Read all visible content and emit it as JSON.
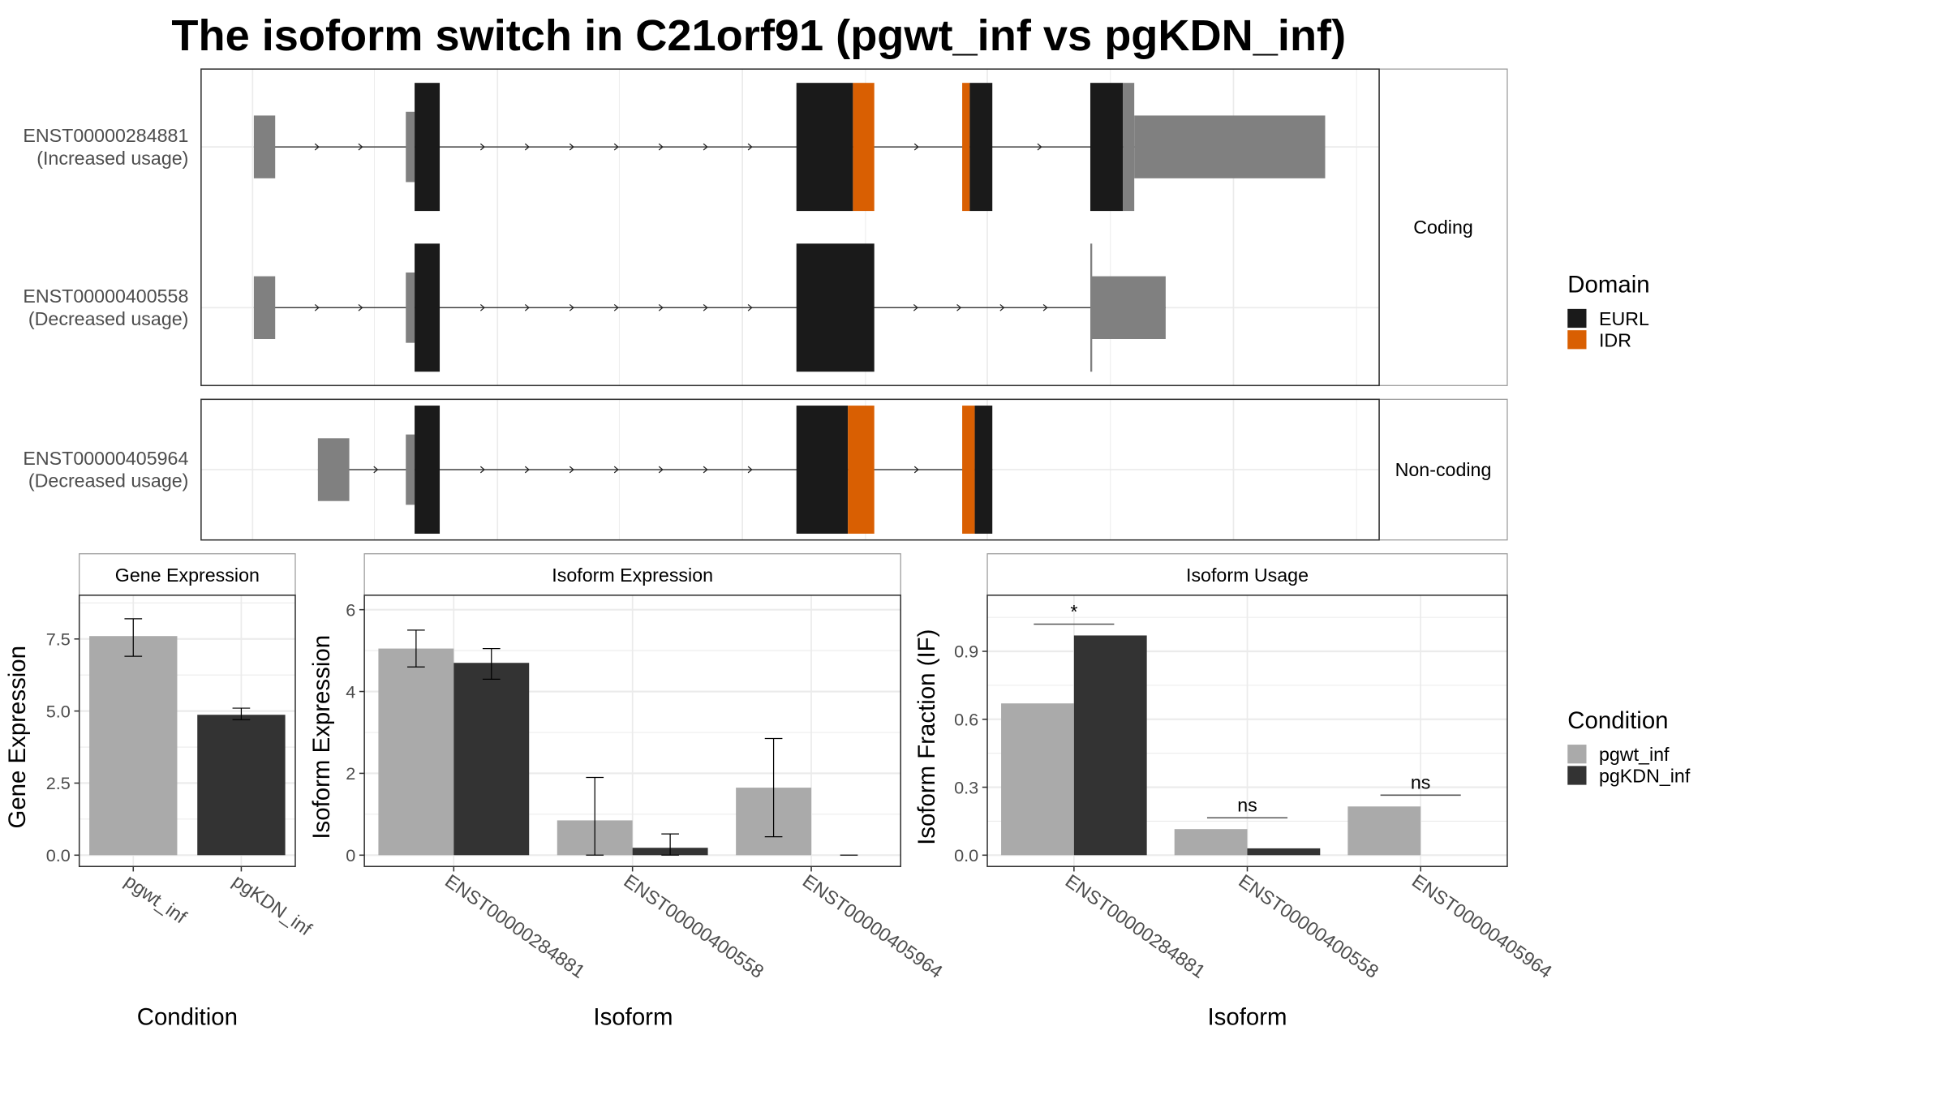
{
  "title": "The isoform switch in C21orf91 (pgwt_inf vs pgKDN_inf)",
  "colors": {
    "eurl": "#1a1a1a",
    "idr": "#d95f02",
    "utr": "#808080",
    "pgwt_inf": "#aaaaaa",
    "pgKDN_inf": "#333333",
    "grid": "#ebebeb"
  },
  "structure": {
    "facets": [
      "Coding",
      "Non-coding"
    ],
    "transcripts": [
      {
        "id": "ENST00000284881",
        "note": "(Increased usage)",
        "facet": 0,
        "features": [
          {
            "type": "utr",
            "from": 202,
            "to": 219
          },
          {
            "type": "utr",
            "from": 323,
            "to": 330
          },
          {
            "type": "EURL",
            "from": 330,
            "to": 350
          },
          {
            "type": "EURL",
            "from": 634,
            "to": 679
          },
          {
            "type": "IDR",
            "from": 679,
            "to": 696
          },
          {
            "type": "IDR",
            "from": 766,
            "to": 772
          },
          {
            "type": "EURL",
            "from": 772,
            "to": 790
          },
          {
            "type": "EURL",
            "from": 868,
            "to": 894
          },
          {
            "type": "cds",
            "from": 894,
            "to": 903
          },
          {
            "type": "utr",
            "from": 903,
            "to": 1055
          }
        ]
      },
      {
        "id": "ENST00000400558",
        "note": "(Decreased usage)",
        "facet": 0,
        "features": [
          {
            "type": "utr",
            "from": 202,
            "to": 219
          },
          {
            "type": "utr",
            "from": 323,
            "to": 330
          },
          {
            "type": "EURL",
            "from": 330,
            "to": 350
          },
          {
            "type": "EURL",
            "from": 634,
            "to": 696
          },
          {
            "type": "cds",
            "from": 868,
            "to": 869.5
          },
          {
            "type": "utr",
            "from": 869,
            "to": 928
          }
        ]
      },
      {
        "id": "ENST00000405964",
        "note": "(Decreased usage)",
        "facet": 1,
        "features": [
          {
            "type": "utr",
            "from": 253,
            "to": 278
          },
          {
            "type": "utr",
            "from": 323,
            "to": 330
          },
          {
            "type": "EURL",
            "from": 330,
            "to": 350
          },
          {
            "type": "EURL",
            "from": 634,
            "to": 675
          },
          {
            "type": "IDR",
            "from": 675,
            "to": 696
          },
          {
            "type": "IDR",
            "from": 766,
            "to": 776
          },
          {
            "type": "EURL",
            "from": 776,
            "to": 790
          }
        ]
      }
    ]
  },
  "legend_domain": {
    "title": "Domain",
    "items": [
      "EURL",
      "IDR"
    ]
  },
  "legend_condition": {
    "title": "Condition",
    "items": [
      "pgwt_inf",
      "pgKDN_inf"
    ]
  },
  "chart_data": [
    {
      "type": "bar",
      "title": "Gene Expression",
      "xlabel": "Condition",
      "ylabel": "Gene Expression",
      "ylim": [
        0,
        8.8
      ],
      "yticks": [
        "0.0",
        "2.5",
        "5.0",
        "7.5"
      ],
      "ytick_values": [
        0,
        2.5,
        5,
        7.5
      ],
      "categories": [
        "pgwt_inf",
        "pgKDN_inf"
      ],
      "series": [
        {
          "name": "value",
          "values": [
            7.6,
            4.87
          ],
          "err_low": [
            6.9,
            4.7
          ],
          "err_high": [
            8.2,
            5.1
          ]
        }
      ]
    },
    {
      "type": "bar",
      "title": "Isoform Expression",
      "xlabel": "Isoform",
      "ylabel": "Isoform Expression",
      "ylim": [
        0,
        6.2
      ],
      "yticks": [
        "0",
        "2",
        "4",
        "6"
      ],
      "ytick_values": [
        0,
        2,
        4,
        6
      ],
      "categories": [
        "ENST00000284881",
        "ENST00000400558",
        "ENST00000405964"
      ],
      "series": [
        {
          "name": "pgwt_inf",
          "values": [
            5.05,
            0.85,
            1.65
          ],
          "err_low": [
            4.6,
            0,
            0.45
          ],
          "err_high": [
            5.5,
            1.9,
            2.85
          ]
        },
        {
          "name": "pgKDN_inf",
          "values": [
            4.7,
            0.18,
            0
          ],
          "err_low": [
            4.3,
            0,
            0
          ],
          "err_high": [
            5.05,
            0.52,
            0
          ]
        }
      ]
    },
    {
      "type": "bar",
      "title": "Isoform Usage",
      "xlabel": "Isoform",
      "ylabel": "Isoform Fraction (IF)",
      "ylim": [
        0,
        1.12
      ],
      "yticks": [
        "0.0",
        "0.3",
        "0.6",
        "0.9"
      ],
      "ytick_values": [
        0,
        0.3,
        0.6,
        0.9
      ],
      "categories": [
        "ENST00000284881",
        "ENST00000400558",
        "ENST00000405964"
      ],
      "series": [
        {
          "name": "pgwt_inf",
          "values": [
            0.67,
            0.115,
            0.215
          ]
        },
        {
          "name": "pgKDN_inf",
          "values": [
            0.97,
            0.03,
            0
          ]
        }
      ],
      "significance": [
        {
          "label": "*",
          "y": 1.02
        },
        {
          "label": "ns",
          "y": 0.165
        },
        {
          "label": "ns",
          "y": 0.265
        }
      ]
    }
  ]
}
